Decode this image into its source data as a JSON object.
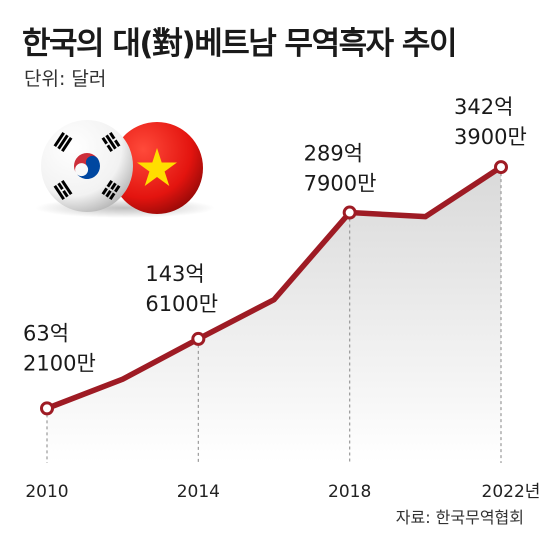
{
  "title": "한국의 대(對)베트남 무역흑자 추이",
  "unit_label": "단위: 달러",
  "source": "자료: 한국무역협회",
  "flags": [
    {
      "name": "south-korea-flag-icon"
    },
    {
      "name": "vietnam-flag-icon"
    }
  ],
  "chart_data": {
    "type": "line",
    "title": "한국의 대(對)베트남 무역흑자 추이",
    "xlabel": "",
    "ylabel": "",
    "unit": "달러",
    "x": [
      2010,
      2012,
      2014,
      2016,
      2018,
      2020,
      2022
    ],
    "values": [
      6.32,
      9.7,
      14.36,
      18.9,
      28.98,
      28.5,
      34.24
    ],
    "xlim": [
      2010,
      2022
    ],
    "ylim": [
      0,
      42
    ],
    "tick_labels": [
      "2010",
      "2014",
      "2018",
      "2022년"
    ],
    "tick_years": [
      2010,
      2014,
      2018,
      2022
    ],
    "labeled_years": [
      2010,
      2014,
      2018,
      2022
    ],
    "data_labels": [
      {
        "year": 2010,
        "line1": "63억",
        "line2": "2100만"
      },
      {
        "year": 2014,
        "line1": "143억",
        "line2": "6100만"
      },
      {
        "year": 2018,
        "line1": "289억",
        "line2": "7900만"
      },
      {
        "year": 2022,
        "line1": "342억",
        "line2": "3900만"
      }
    ],
    "grid": false,
    "colors": {
      "line": "#9e1b24",
      "marker_fill": "#ffffff",
      "fill_top": "#d9d9d9",
      "fill_bottom": "#ffffff",
      "drop_line": "#999999"
    }
  }
}
